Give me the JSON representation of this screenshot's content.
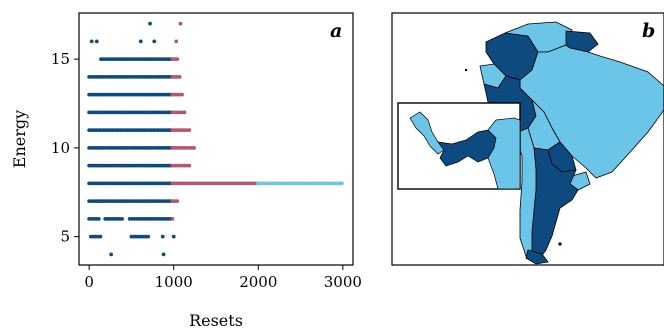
{
  "colors": {
    "navy": "#0d4a80",
    "rose": "#b5566a",
    "sky": "#6bc5e8",
    "land_dark": "#0d4a80",
    "land_light": "#6bc5e8"
  },
  "chart_data": [
    {
      "type": "scatter",
      "panel_label": "a",
      "xlabel": "Resets",
      "ylabel": "Energy",
      "xlim": [
        -120,
        3120
      ],
      "ylim": [
        3.4,
        17.6
      ],
      "xticks": [
        0,
        1000,
        2000,
        3000
      ],
      "yticks": [
        5,
        10,
        15
      ],
      "grid": false,
      "legend": "none",
      "series": [
        {
          "color": "navy",
          "bands": [
            {
              "y": 4,
              "points": [
                260,
                880
              ]
            },
            {
              "y": 5,
              "ranges": [
                [
                  20,
                  140
                ],
                [
                  500,
                  720
                ]
              ],
              "points": [
                870,
                1000
              ]
            },
            {
              "y": 6,
              "ranges": [
                [
                  0,
                  120
                ],
                [
                  190,
                  390
                ],
                [
                  480,
                  980
                ]
              ]
            },
            {
              "y": 7,
              "ranges": [
                [
                  0,
                  980
                ]
              ]
            },
            {
              "y": 8,
              "ranges": [
                [
                  0,
                  980
                ]
              ]
            },
            {
              "y": 9,
              "ranges": [
                [
                  0,
                  980
                ]
              ]
            },
            {
              "y": 10,
              "ranges": [
                [
                  0,
                  980
                ]
              ]
            },
            {
              "y": 11,
              "ranges": [
                [
                  0,
                  980
                ]
              ]
            },
            {
              "y": 12,
              "ranges": [
                [
                  0,
                  980
                ]
              ]
            },
            {
              "y": 13,
              "ranges": [
                [
                  0,
                  980
                ]
              ]
            },
            {
              "y": 14,
              "ranges": [
                [
                  0,
                  980
                ]
              ]
            },
            {
              "y": 15,
              "ranges": [
                [
                  140,
                  980
                ]
              ]
            },
            {
              "y": 16,
              "points": [
                30,
                90,
                610,
                770
              ]
            },
            {
              "y": 17,
              "points": [
                720
              ]
            }
          ]
        },
        {
          "color": "rose",
          "bands": [
            {
              "y": 6,
              "ranges": [
                [
                  985,
                  1010
                ]
              ]
            },
            {
              "y": 7,
              "ranges": [
                [
                  985,
                  1060
                ]
              ]
            },
            {
              "y": 8,
              "ranges": [
                [
                  985,
                  1990
                ]
              ]
            },
            {
              "y": 9,
              "ranges": [
                [
                  985,
                  1210
                ]
              ]
            },
            {
              "y": 10,
              "ranges": [
                [
                  985,
                  1250
                ]
              ]
            },
            {
              "y": 11,
              "ranges": [
                [
                  985,
                  1200
                ]
              ]
            },
            {
              "y": 12,
              "ranges": [
                [
                  985,
                  1150
                ]
              ]
            },
            {
              "y": 13,
              "ranges": [
                [
                  985,
                  1100
                ]
              ]
            },
            {
              "y": 14,
              "ranges": [
                [
                  985,
                  1080
                ]
              ]
            },
            {
              "y": 15,
              "ranges": [
                [
                  985,
                  1050
                ]
              ]
            },
            {
              "y": 16,
              "points": [
                1030
              ]
            },
            {
              "y": 17,
              "points": [
                1080
              ]
            }
          ]
        },
        {
          "color": "sky",
          "bands": [
            {
              "y": 8,
              "ranges": [
                [
                  1995,
                  2990
                ]
              ]
            }
          ]
        }
      ]
    },
    {
      "type": "map",
      "panel_label": "b"
    }
  ]
}
